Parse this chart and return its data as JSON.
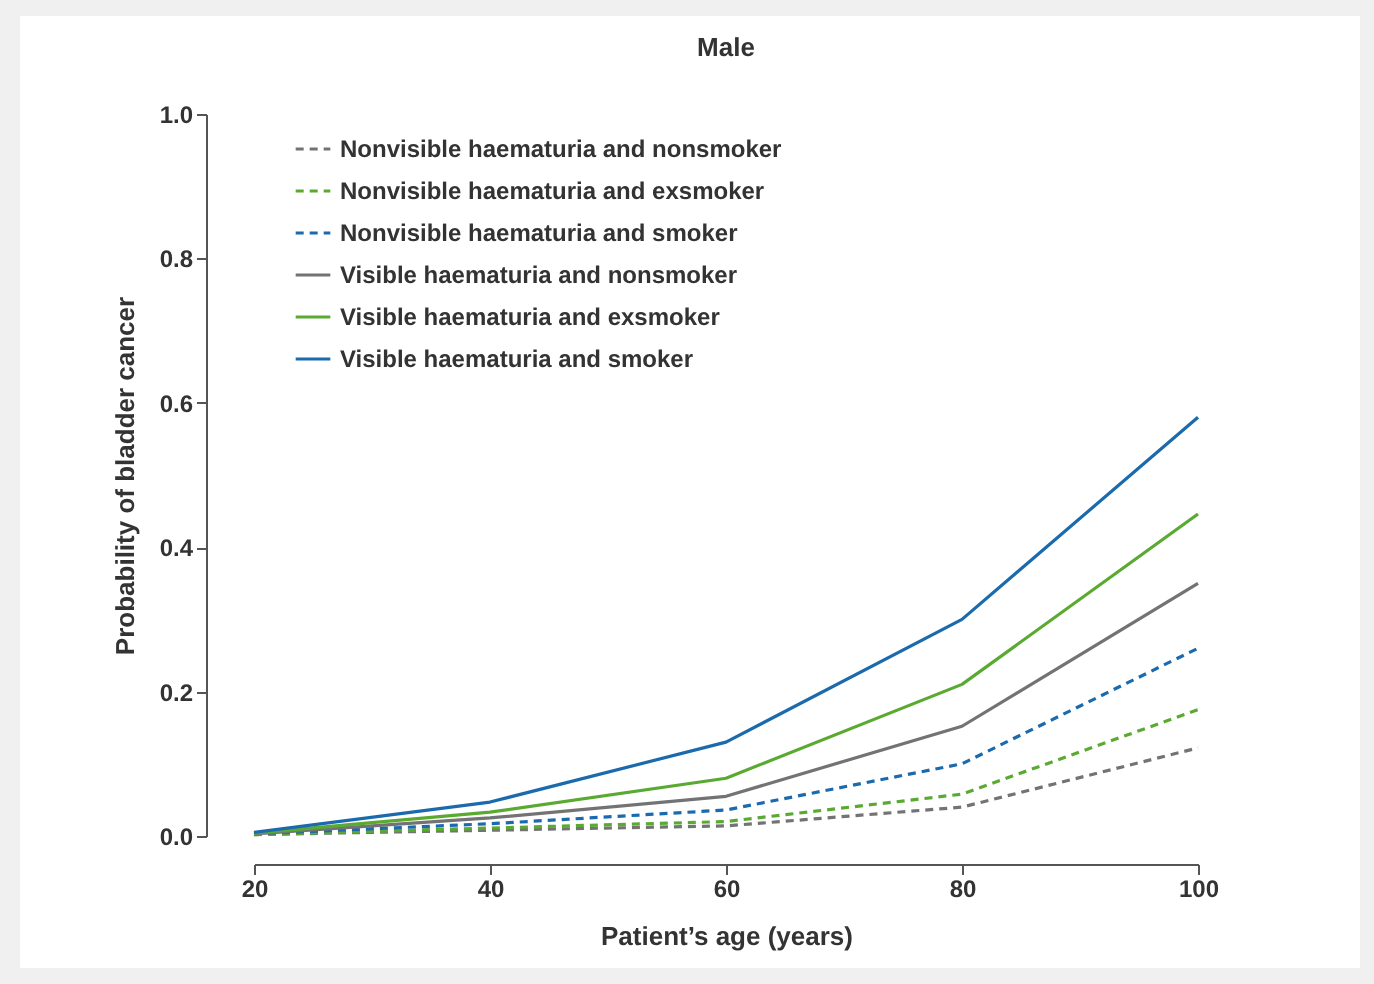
{
  "chart_data": {
    "type": "line",
    "title": "Male",
    "xlabel": "Patient’s age (years)",
    "ylabel": "Probability of bladder cancer",
    "x": [
      20,
      40,
      60,
      80,
      100
    ],
    "xlim": [
      20,
      100
    ],
    "xticks": [
      20,
      40,
      60,
      80,
      100
    ],
    "ylim": [
      0,
      1
    ],
    "yticks": [
      {
        "value": 0,
        "label": "0.0"
      },
      {
        "value": 0.2,
        "label": "0.2"
      },
      {
        "value": 0.4,
        "label": "0.4"
      },
      {
        "value": 0.6,
        "label": "0.6"
      },
      {
        "value": 0.8,
        "label": "0.8"
      },
      {
        "value": 1,
        "label": "1.0"
      }
    ],
    "grid": false,
    "legend": "top left",
    "marker": "none",
    "series": [
      {
        "name": "Nonvisible haematuria and nonsmoker",
        "color": "#737373",
        "line_style": "dashed",
        "values": [
          0.002,
          0.008,
          0.014,
          0.04,
          0.122
        ]
      },
      {
        "name": "Nonvisible haematuria and exsmoker",
        "color": "#5aaa32",
        "line_style": "dashed",
        "values": [
          0.002,
          0.011,
          0.02,
          0.058,
          0.175
        ]
      },
      {
        "name": "Nonvisible haematuria and smoker",
        "color": "#1a6aad",
        "line_style": "dashed",
        "values": [
          0.003,
          0.017,
          0.036,
          0.1,
          0.26
        ]
      },
      {
        "name": "Visible haematuria and nonsmoker",
        "color": "#737373",
        "line_style": "solid",
        "values": [
          0.003,
          0.025,
          0.055,
          0.152,
          0.35
        ]
      },
      {
        "name": "Visible haematuria and exsmoker",
        "color": "#5aaa32",
        "line_style": "solid",
        "values": [
          0.004,
          0.033,
          0.08,
          0.21,
          0.446
        ]
      },
      {
        "name": "Visible haematuria and smoker",
        "color": "#1a6aad",
        "line_style": "solid",
        "values": [
          0.005,
          0.047,
          0.13,
          0.3,
          0.58
        ]
      }
    ]
  }
}
